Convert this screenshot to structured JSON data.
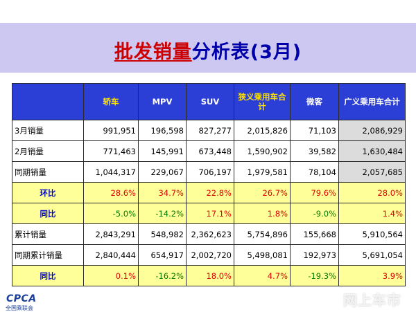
{
  "title": {
    "part1": "批发销量",
    "part2": "分析表(3月)"
  },
  "table": {
    "headers": [
      "",
      "轿车",
      "MPV",
      "SUV",
      "狭义乘用车合计",
      "微客",
      "广义乘用车合计"
    ],
    "rows": [
      {
        "label": "3月销量",
        "style": "white",
        "cells": [
          "991,951",
          "196,598",
          "827,277",
          "2,015,826",
          "71,103",
          "2,086,929"
        ]
      },
      {
        "label": "2月销量",
        "style": "white",
        "cells": [
          "771,463",
          "145,991",
          "673,448",
          "1,590,902",
          "39,582",
          "1,630,484"
        ]
      },
      {
        "label": "同期销量",
        "style": "white",
        "cells": [
          "1,044,317",
          "229,067",
          "706,197",
          "1,979,581",
          "78,104",
          "2,057,685"
        ]
      },
      {
        "label": "环比",
        "style": "yellow",
        "cells": [
          "28.6%",
          "34.7%",
          "22.8%",
          "26.7%",
          "79.6%",
          "28.0%"
        ]
      },
      {
        "label": "同比",
        "style": "yellow",
        "cells": [
          "-5.0%",
          "-14.2%",
          "17.1%",
          "1.8%",
          "-9.0%",
          "1.4%"
        ]
      },
      {
        "label": "累计销量",
        "style": "cumu",
        "cells": [
          "2,843,291",
          "548,982",
          "2,362,623",
          "5,754,896",
          "155,668",
          "5,910,564"
        ]
      },
      {
        "label": "同期累计销量",
        "style": "cumu",
        "cells": [
          "2,840,444",
          "654,917",
          "2,002,720",
          "5,498,081",
          "192,973",
          "5,691,054"
        ]
      },
      {
        "label": "同比",
        "style": "yellow",
        "cells": [
          "0.1%",
          "-16.2%",
          "18.0%",
          "4.7%",
          "-19.3%",
          "3.9%"
        ]
      }
    ]
  },
  "logo": {
    "text": "CPCA",
    "subtext": "全国乘联会"
  },
  "watermark": "网上车市",
  "colors": {
    "band": "#ccc8f2",
    "header": "#2b3fd6",
    "highlight": "#ffff99",
    "positive": "#dd0000",
    "negative": "#007a00"
  }
}
